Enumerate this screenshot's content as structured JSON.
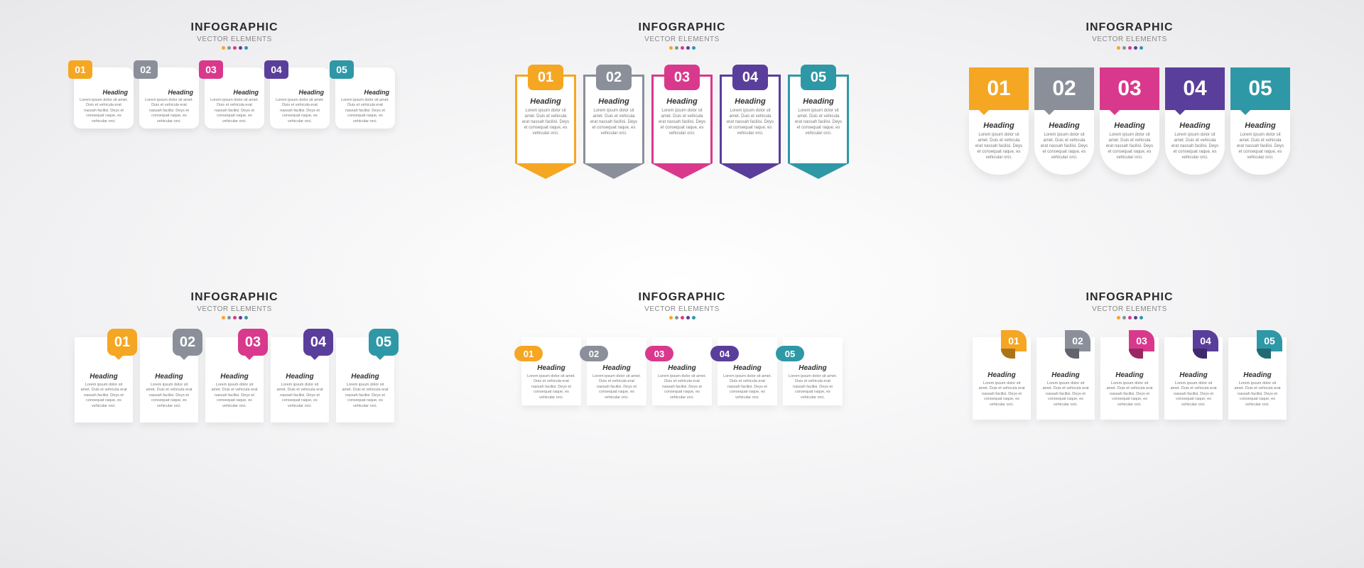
{
  "header": {
    "title": "INFOGRAPHIC",
    "subtitle": "VECTOR ELEMENTS",
    "title_fontsize": 16,
    "subtitle_fontsize": 10,
    "dot_colors": [
      "#f5a623",
      "#8a8f99",
      "#d9398c",
      "#5a3e9b",
      "#2f98a6"
    ]
  },
  "colors": {
    "c1": "#f5a623",
    "c2": "#8a8f99",
    "c3": "#d9398c",
    "c4": "#5a3e9b",
    "c5": "#2f98a6"
  },
  "steps": [
    {
      "num": "01",
      "color": "#f5a623",
      "heading": "Heading",
      "body": "Lorem ipsum dolor sit amet. Duis et vehicula erat nassah facilisi. Deys et consequat raque, es vehicular orci."
    },
    {
      "num": "02",
      "color": "#8a8f99",
      "heading": "Heading",
      "body": "Lorem ipsum dolor sit amet. Duis et vehicula erat nassah facilisi. Deys et consequat raque, es vehicular orci."
    },
    {
      "num": "03",
      "color": "#d9398c",
      "heading": "Heading",
      "body": "Lorem ipsum dolor sit amet. Duis et vehicula erat nassah facilisi. Deys et consequat raque, es vehicular orci."
    },
    {
      "num": "04",
      "color": "#5a3e9b",
      "heading": "Heading",
      "body": "Lorem ipsum dolor sit amet. Duis et vehicula erat nassah facilisi. Deys et consequat raque, es vehicular orci."
    },
    {
      "num": "05",
      "color": "#2f98a6",
      "heading": "Heading",
      "body": "Lorem ipsum dolor sit amet. Duis et vehicula erat nassah facilisi. Deys et consequat raque, es vehicular orci."
    }
  ],
  "panels": [
    {
      "style": "style1"
    },
    {
      "style": "style2"
    },
    {
      "style": "style3"
    },
    {
      "style": "style4"
    },
    {
      "style": "style5"
    },
    {
      "style": "style6"
    }
  ]
}
